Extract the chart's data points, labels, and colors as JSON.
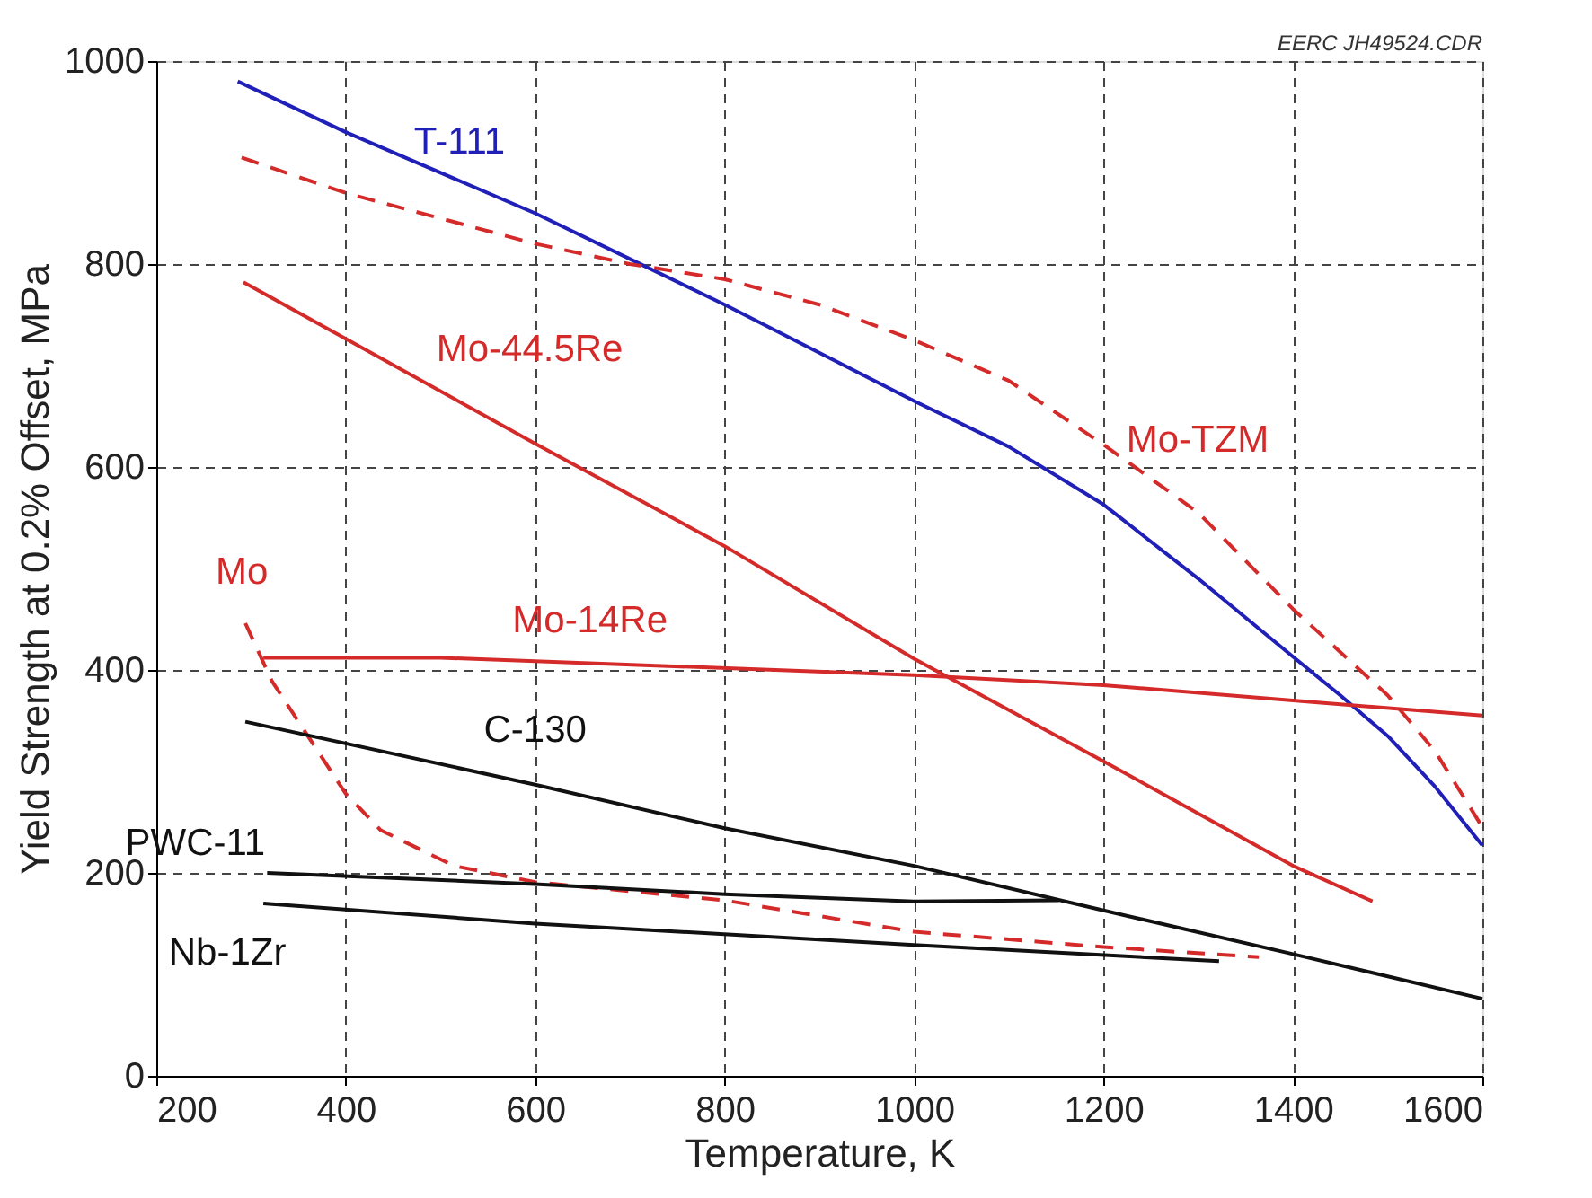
{
  "chart_data": {
    "type": "line",
    "xlabel": "Temperature, K",
    "ylabel": "Yield Strength at 0.2% Offset, MPa",
    "xlim": [
      200,
      1600
    ],
    "xticks": [
      200,
      400,
      600,
      800,
      1000,
      1200,
      1400,
      1600
    ],
    "ylim": [
      0,
      1000
    ],
    "yticks": [
      0,
      200,
      400,
      600,
      800,
      1000
    ],
    "grid": true,
    "marker": "none",
    "annotations": [
      "EERC JH49524.CDR"
    ],
    "series": [
      {
        "name": "T-111",
        "color": "#2020b8",
        "line_style": "solid",
        "x": [
          286,
          400,
          600,
          700,
          800,
          1000,
          1100,
          1200,
          1300,
          1400,
          1450,
          1500,
          1550,
          1600
        ],
        "values": [
          980,
          930,
          850,
          805,
          760,
          665,
          620,
          563,
          490,
          413,
          375,
          335,
          285,
          227
        ]
      },
      {
        "name": "Mo-TZM",
        "color": "#d42a2a",
        "line_style": "dashed",
        "x": [
          290,
          400,
          600,
          700,
          800,
          900,
          1000,
          1100,
          1200,
          1300,
          1400,
          1500,
          1550,
          1600
        ],
        "values": [
          905,
          870,
          820,
          800,
          785,
          760,
          725,
          685,
          622,
          555,
          460,
          375,
          320,
          245
        ]
      },
      {
        "name": "Mo-44.5Re",
        "color": "#d42a2a",
        "line_style": "solid",
        "x": [
          292,
          600,
          800,
          1000,
          1200,
          1400,
          1484
        ],
        "values": [
          782,
          623,
          522,
          411,
          310,
          207,
          172
        ]
      },
      {
        "name": "Mo",
        "color": "#d42a2a",
        "line_style": "dashed",
        "x": [
          294,
          322,
          400,
          437,
          514,
          600,
          800,
          1000,
          1200,
          1364
        ],
        "values": [
          446,
          389,
          278,
          242,
          207,
          191,
          173,
          142,
          127,
          117
        ]
      },
      {
        "name": "Mo-14Re",
        "color": "#d42a2a",
        "line_style": "solid",
        "x": [
          313,
          500,
          1000,
          1200,
          1400,
          1600
        ],
        "values": [
          412,
          412,
          395,
          385,
          370,
          355
        ]
      },
      {
        "name": "C-130",
        "color": "#111111",
        "line_style": "solid",
        "x": [
          294,
          600,
          800,
          1000,
          1200,
          1400,
          1600
        ],
        "values": [
          349,
          287,
          244,
          207,
          163,
          120,
          76
        ]
      },
      {
        "name": "PWC-11",
        "color": "#111111",
        "line_style": "solid",
        "x": [
          317,
          600,
          800,
          1000,
          1153
        ],
        "values": [
          200,
          189,
          179,
          172,
          173
        ]
      },
      {
        "name": "Nb-1Zr",
        "color": "#111111",
        "line_style": "solid",
        "x": [
          313,
          600,
          1000,
          1322
        ],
        "values": [
          170,
          150,
          129,
          113
        ]
      }
    ]
  }
}
